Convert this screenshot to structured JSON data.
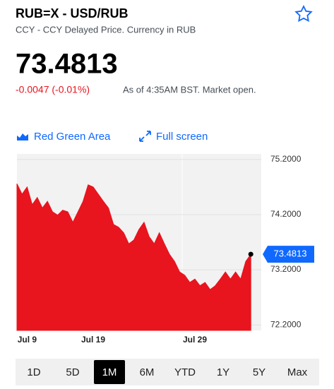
{
  "quote": {
    "title": "RUB=X - USD/RUB",
    "subtitle": "CCY - CCY Delayed Price. Currency in RUB",
    "price": "73.4813",
    "change": "-0.0047 (-0.01%)",
    "as_of": "As of 4:35AM BST. Market open."
  },
  "toolbar": {
    "chart_style": "Red Green Area",
    "full_screen": "Full screen"
  },
  "ranges": {
    "labels": [
      "1D",
      "5D",
      "1M",
      "6M",
      "YTD",
      "1Y",
      "5Y",
      "Max"
    ],
    "selected": 2
  },
  "chart_data": {
    "type": "area",
    "color": "#e8141e",
    "categories": [
      null,
      null,
      "Jul 9",
      null,
      null,
      null,
      null,
      null,
      null,
      null,
      null,
      null,
      null,
      null,
      null,
      "Jul 19",
      null,
      null,
      null,
      null,
      null,
      null,
      null,
      null,
      null,
      null,
      null,
      null,
      null,
      null,
      null,
      null,
      null,
      null,
      null,
      "Jul 29",
      null,
      null,
      null,
      null,
      null,
      null,
      null,
      null,
      null,
      null,
      null,
      null
    ],
    "values": [
      74.76,
      74.57,
      74.7,
      74.38,
      74.51,
      74.32,
      74.44,
      74.25,
      74.19,
      74.28,
      74.25,
      74.06,
      74.25,
      74.44,
      74.74,
      74.7,
      74.57,
      74.44,
      74.32,
      74.02,
      73.97,
      73.87,
      73.67,
      73.74,
      73.93,
      74.06,
      73.8,
      73.67,
      73.87,
      73.67,
      73.48,
      73.35,
      73.16,
      73.1,
      72.97,
      73.03,
      72.91,
      72.97,
      72.84,
      72.91,
      73.03,
      73.16,
      73.03,
      73.16,
      73.03,
      73.35,
      73.48,
      null
    ],
    "current_value": 73.4813,
    "ylim": [
      72.1,
      75.3
    ],
    "yticks": [
      {
        "value": 72.2,
        "label": "72.2000"
      },
      {
        "value": 73.2,
        "label": "73.2000"
      },
      {
        "value": 74.2,
        "label": "74.2000"
      },
      {
        "value": 75.2,
        "label": "75.2000"
      }
    ],
    "grid": true
  }
}
